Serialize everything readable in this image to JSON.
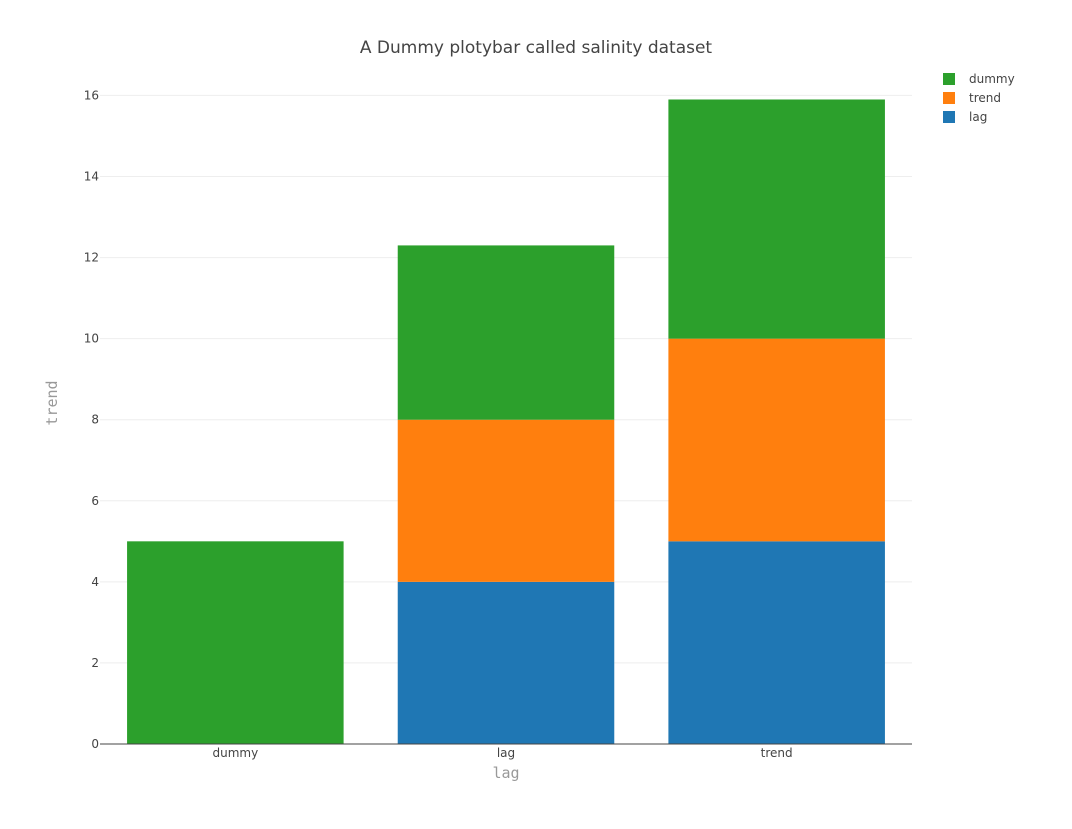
{
  "chart_data": {
    "type": "bar",
    "barmode": "stack",
    "title": "A Dummy plotybar called salinity dataset",
    "xlabel": "lag",
    "ylabel": "trend",
    "categories": [
      "dummy",
      "lag",
      "trend"
    ],
    "ylim": [
      0,
      16
    ],
    "yticks": [
      0,
      2,
      4,
      6,
      8,
      10,
      12,
      14,
      16
    ],
    "grid": true,
    "legend_position": "top-right",
    "series": [
      {
        "name": "lag",
        "color": "#1f77b4",
        "values": [
          0,
          4,
          5
        ]
      },
      {
        "name": "trend",
        "color": "#ff7f0e",
        "values": [
          0,
          4,
          5
        ]
      },
      {
        "name": "dummy",
        "color": "#2ca02c",
        "values": [
          5,
          4.3,
          5.9
        ]
      }
    ],
    "legend_order": [
      "dummy",
      "trend",
      "lag"
    ]
  }
}
